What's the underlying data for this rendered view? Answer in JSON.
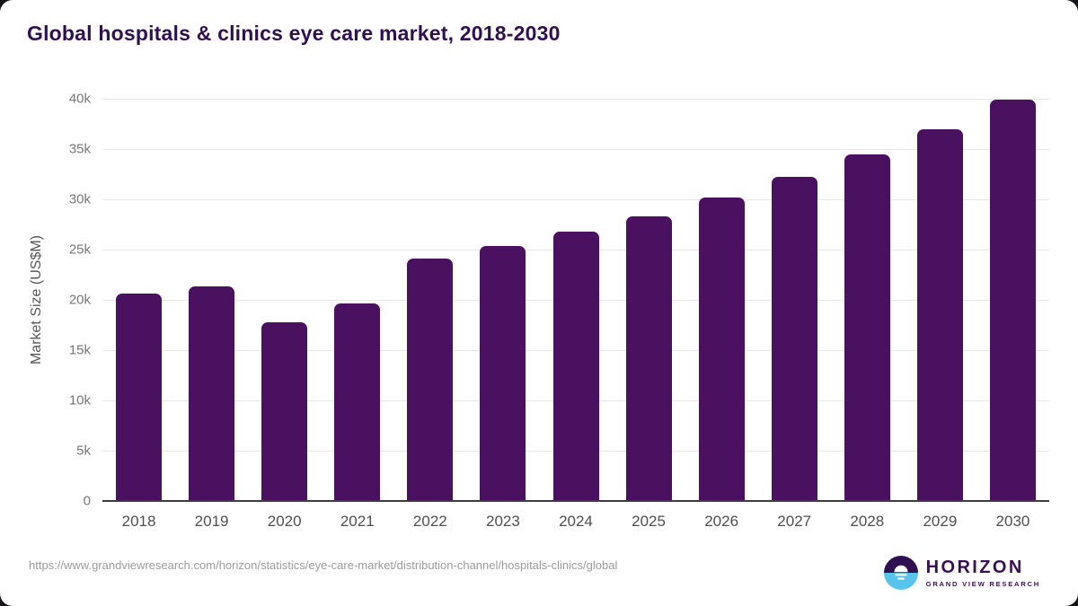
{
  "header": {
    "title": "Global hospitals & clinics eye care market, 2018-2030"
  },
  "chart_data": {
    "type": "bar",
    "title": "Global hospitals & clinics eye care market, 2018-2030",
    "categories": [
      "2018",
      "2019",
      "2020",
      "2021",
      "2022",
      "2023",
      "2024",
      "2025",
      "2026",
      "2027",
      "2028",
      "2029",
      "2030"
    ],
    "values": [
      20600,
      21300,
      17800,
      19600,
      24100,
      25400,
      26800,
      28300,
      30200,
      32200,
      34500,
      37000,
      39900
    ],
    "xlabel": "",
    "ylabel": "Market Size (US$M)",
    "ylim": [
      0,
      40000
    ],
    "ytick_interval": 5000,
    "ytick_labels": [
      "0",
      "5k",
      "10k",
      "15k",
      "20k",
      "25k",
      "30k",
      "35k",
      "40k"
    ],
    "grid": "horizontal",
    "legend": "none",
    "bar_color": "#491160"
  },
  "footer": {
    "source_url": "https://www.grandviewresearch.com/horizon/statistics/eye-care-market/distribution-channel/hospitals-clinics/global",
    "logo": {
      "brand": "HORIZON",
      "subtext": "GRAND VIEW RESEARCH",
      "icon": "horizon-sun-icon"
    }
  },
  "colors": {
    "bar": "#491160",
    "title_text": "#311051",
    "axis_title_text": "#565656",
    "ytick_text": "#767676",
    "xtick_text": "#4e4e4e",
    "gridline": "#e6e6e6",
    "axis_line": "#3d3d3d",
    "url_text": "#9b9b9b",
    "logo_purple": "#3b1053",
    "logo_blue": "#58c4eb"
  }
}
